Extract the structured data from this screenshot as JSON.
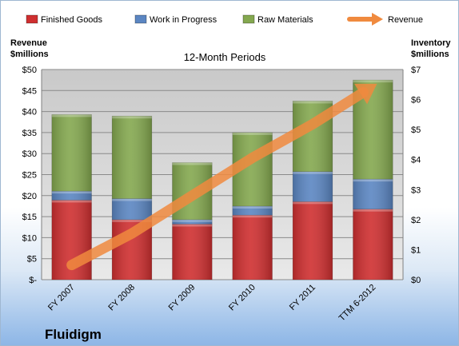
{
  "chart_data": {
    "type": "bar",
    "title": "12-Month Periods",
    "company": "Fluidigm",
    "categories": [
      "FY 2007",
      "FY 2008",
      "FY 2009",
      "FY 2010",
      "FY 2011",
      "TTM 6-2012"
    ],
    "series": [
      {
        "name": "Finished Goods",
        "color": "#cf2f30",
        "axis": "right",
        "values": [
          2.65,
          2.0,
          1.85,
          2.15,
          2.6,
          2.35
        ]
      },
      {
        "name": "Work in Progress",
        "color": "#5b86c2",
        "axis": "right",
        "values": [
          0.3,
          0.7,
          0.15,
          0.3,
          1.0,
          1.0
        ]
      },
      {
        "name": "Raw Materials",
        "color": "#84a84f",
        "axis": "right",
        "values": [
          2.55,
          2.75,
          1.9,
          2.45,
          2.35,
          3.3
        ]
      },
      {
        "name": "Revenue",
        "color": "#f08a3e",
        "axis": "left",
        "values": [
          3.5,
          11,
          20,
          29,
          37,
          46
        ]
      }
    ],
    "left_axis": {
      "label_line1": "Revenue",
      "label_line2": "$millions",
      "ylim": [
        0,
        50
      ],
      "ticks": [
        "$-",
        "$5",
        "$10",
        "$15",
        "$20",
        "$25",
        "$30",
        "$35",
        "$40",
        "$45",
        "$50"
      ]
    },
    "right_axis": {
      "label_line1": "Inventory",
      "label_line2": "$millions",
      "ylim": [
        0,
        7
      ],
      "ticks": [
        "$0",
        "$1",
        "$2",
        "$3",
        "$4",
        "$5",
        "$6",
        "$7"
      ]
    },
    "grid": true,
    "legend": "top"
  }
}
